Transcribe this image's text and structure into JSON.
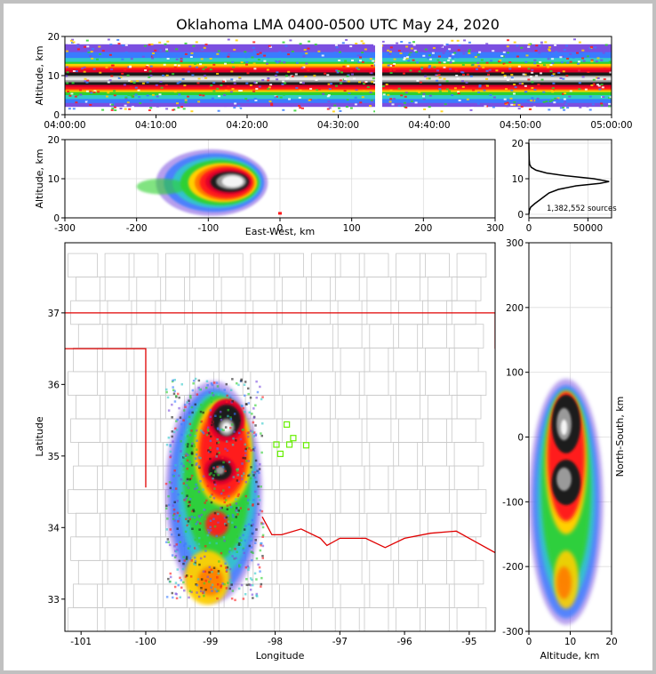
{
  "chart_data": {
    "type": "heatmap",
    "title": "Oklahoma LMA 0400-0500 UTC May 24, 2020",
    "total_sources_label": "1,382,552 sources",
    "time_height": {
      "ylabel": "Altitude, km",
      "ylim": [
        0,
        20
      ],
      "yticks": [
        "0",
        "10",
        "20"
      ],
      "xlim_minutes": [
        0,
        60
      ],
      "xticks": [
        "04:00:00",
        "04:10:00",
        "04:20:00",
        "04:30:00",
        "04:40:00",
        "04:50:00",
        "05:00:00"
      ],
      "data_gap_minutes": [
        34.2,
        34.8
      ],
      "core_altitude_km": [
        7,
        11
      ]
    },
    "ew_altitude": {
      "xlabel": "East-West, km",
      "ylabel": "Altitude, km",
      "xlim": [
        -300,
        300
      ],
      "ylim": [
        0,
        20
      ],
      "xticks": [
        "-300",
        "-200",
        "-100",
        "0",
        "100",
        "200",
        "300"
      ],
      "yticks": [
        "0",
        "10",
        "20"
      ],
      "core_center_km": [
        -70,
        9
      ]
    },
    "histogram": {
      "xlim": [
        0,
        70000
      ],
      "ylim": [
        0,
        20
      ],
      "xticks": [
        "0",
        "50000"
      ],
      "yticks": [
        "0",
        "10",
        "20"
      ],
      "profile": [
        [
          0,
          0
        ],
        [
          300,
          1
        ],
        [
          1500,
          2
        ],
        [
          5000,
          3
        ],
        [
          9000,
          4
        ],
        [
          13000,
          5
        ],
        [
          17000,
          6
        ],
        [
          25000,
          7
        ],
        [
          40000,
          8
        ],
        [
          60000,
          8.7
        ],
        [
          68000,
          9.2
        ],
        [
          55000,
          10
        ],
        [
          32000,
          10.8
        ],
        [
          15000,
          11.6
        ],
        [
          6000,
          12.4
        ],
        [
          2000,
          13.2
        ],
        [
          700,
          14
        ],
        [
          200,
          15.5
        ],
        [
          50,
          18
        ],
        [
          0,
          20
        ]
      ]
    },
    "plan_view": {
      "xlabel": "Longitude",
      "ylabel": "Latitude",
      "xlim": [
        -101.25,
        -94.6
      ],
      "ylim": [
        32.55,
        37.98
      ],
      "xticks": [
        "-101",
        "-100",
        "-99",
        "-98",
        "-97",
        "-96",
        "-95"
      ],
      "yticks": [
        "33",
        "34",
        "35",
        "36",
        "37"
      ],
      "storm_cores": [
        {
          "label": "northern core",
          "lon": -98.75,
          "lat": 35.5
        },
        {
          "label": "southern core",
          "lon": -98.8,
          "lat": 34.8
        },
        {
          "label": "trailing area",
          "lon": -99.0,
          "lat": 33.3
        }
      ],
      "stations": [
        [
          -97.82,
          35.44
        ],
        [
          -97.98,
          35.16
        ],
        [
          -97.92,
          35.03
        ],
        [
          -97.78,
          35.16
        ],
        [
          -97.72,
          35.25
        ],
        [
          -97.52,
          35.15
        ]
      ]
    },
    "ns_altitude": {
      "xlabel": "Altitude, km",
      "ylabel": "North-South, km",
      "xlim": [
        0,
        20
      ],
      "ylim": [
        -300,
        300
      ],
      "xticks": [
        "0",
        "10",
        "20"
      ],
      "yticks": [
        "-300",
        "-200",
        "-100",
        "0",
        "100",
        "200",
        "300"
      ]
    }
  }
}
